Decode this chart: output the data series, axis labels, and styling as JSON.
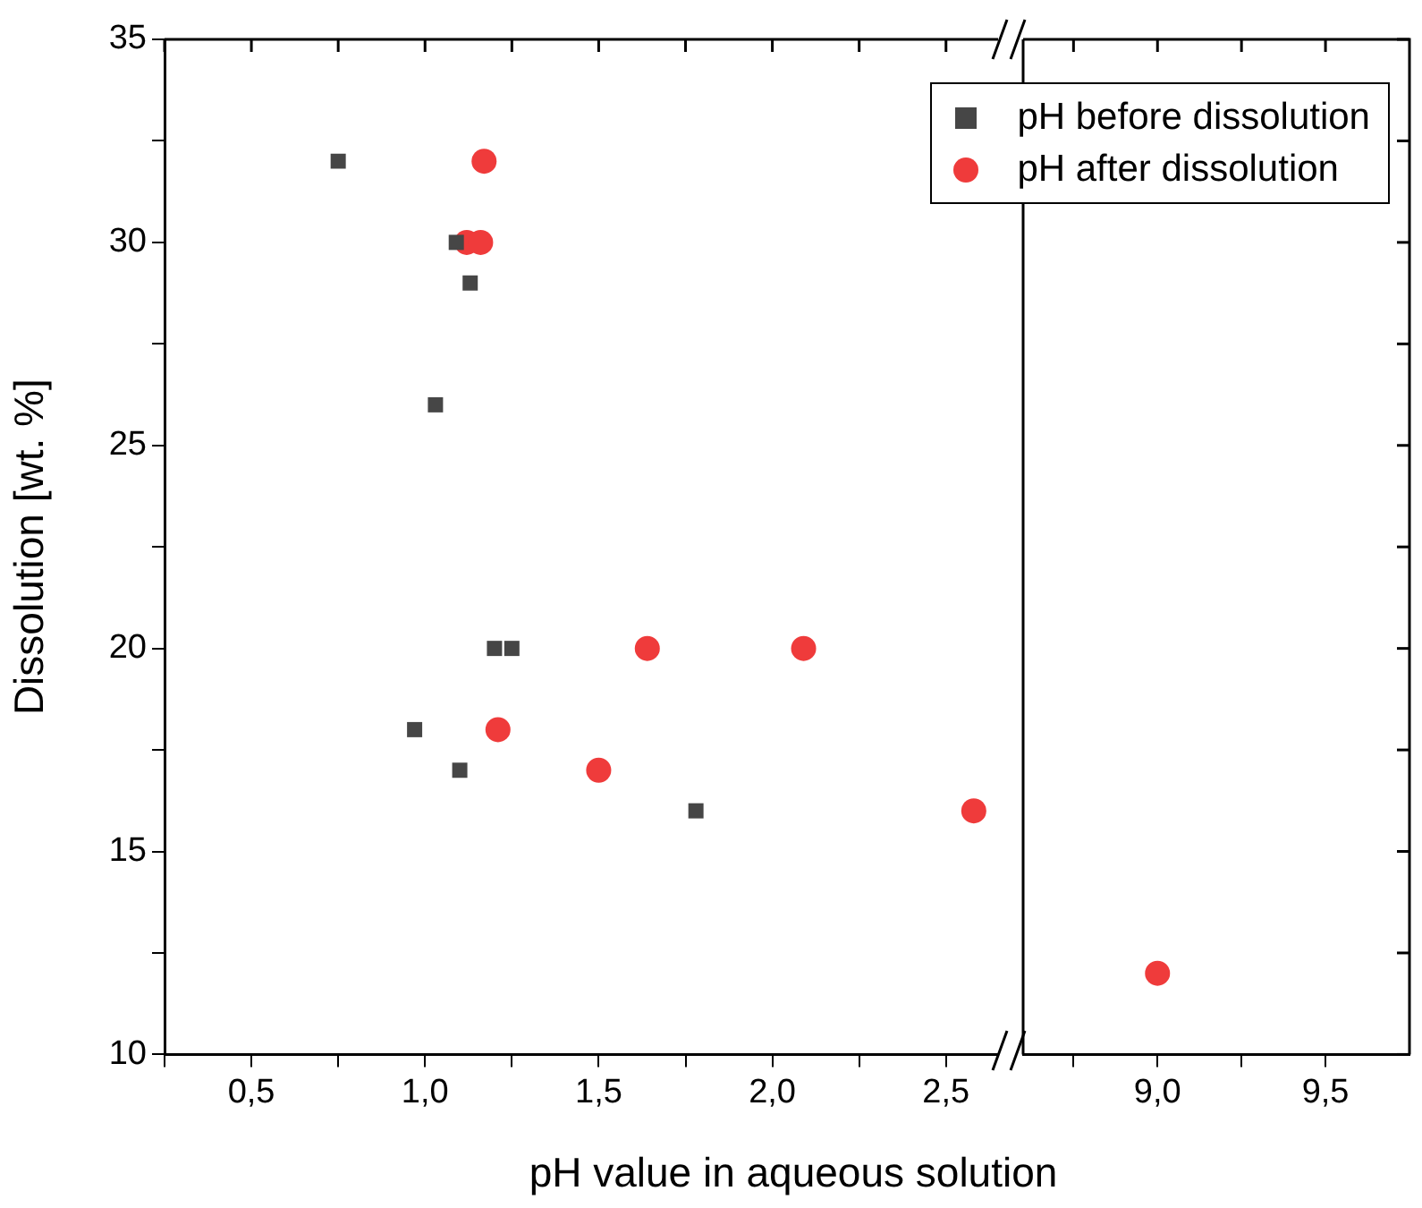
{
  "chart_data": [
    {
      "type": "scatter",
      "xlabel": "pH value in aqueous solution",
      "ylabel": "Dissolution [wt. %]",
      "xlim": [
        0.25,
        2.65
      ],
      "ylim": [
        10,
        35
      ],
      "xticks": [
        {
          "value": 0.25,
          "label": null
        },
        {
          "value": 0.5,
          "label": "0,5"
        },
        {
          "value": 0.75,
          "label": null
        },
        {
          "value": 1,
          "label": "1,0"
        },
        {
          "value": 1.25,
          "label": null
        },
        {
          "value": 1.5,
          "label": "1,5"
        },
        {
          "value": 1.75,
          "label": null
        },
        {
          "value": 2,
          "label": "2,0"
        },
        {
          "value": 2.25,
          "label": null
        },
        {
          "value": 2.5,
          "label": "2,5"
        }
      ],
      "yticks": [
        10,
        {
          "value": 12.5,
          "label": null
        },
        15,
        {
          "value": 17.5,
          "label": null
        },
        20,
        {
          "value": 22.5,
          "label": null
        },
        25,
        {
          "value": 27.5,
          "label": null
        },
        30,
        {
          "value": 32.5,
          "label": null
        },
        35
      ],
      "legend": "top right",
      "grid": false,
      "series": [
        {
          "name": "pH before dissolution",
          "color": "#464646",
          "marker": "square",
          "x": [
            0.75,
            1.09,
            1.13,
            1.03,
            1.2,
            1.25,
            0.97,
            1.1,
            1.78
          ],
          "values": [
            32,
            30,
            29,
            26,
            20,
            20,
            18,
            17,
            16
          ]
        },
        {
          "name": "pH after dissolution",
          "color": "#ef3b3b",
          "marker": "circle",
          "x": [
            1.17,
            1.12,
            1.16,
            1.21,
            1.5,
            1.64,
            2.09,
            2.58
          ],
          "values": [
            32,
            30,
            30,
            18,
            17,
            20,
            20,
            16
          ]
        }
      ]
    },
    {
      "type": "scatter",
      "xlim": [
        8.6,
        9.75
      ],
      "ylim": [
        10,
        35
      ],
      "tick_labels": "x",
      "xticks": [
        {
          "value": 8.75,
          "label": null
        },
        {
          "value": 9,
          "label": "9,0"
        },
        {
          "value": 9.25,
          "label": null
        },
        {
          "value": 9.5,
          "label": "9,5"
        }
      ],
      "yticks": [
        10,
        {
          "value": 12.5,
          "label": null
        },
        15,
        {
          "value": 17.5,
          "label": null
        },
        20,
        {
          "value": 22.5,
          "label": null
        },
        25,
        {
          "value": 27.5,
          "label": null
        },
        30,
        {
          "value": 32.5,
          "label": null
        },
        35
      ],
      "grid": false,
      "series": [
        {
          "color": "#ef3b3b",
          "marker": "circle",
          "x": [
            9.0
          ],
          "values": [
            12
          ]
        }
      ]
    }
  ]
}
